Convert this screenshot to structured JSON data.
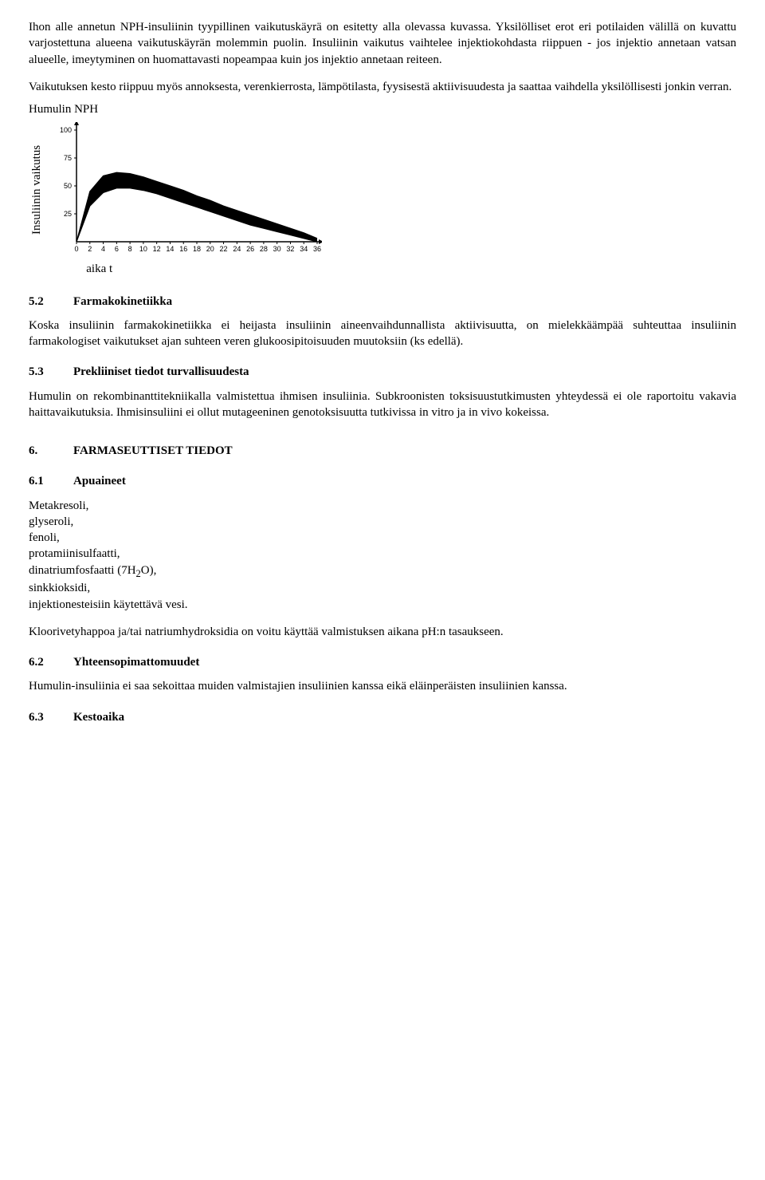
{
  "intro": {
    "p1": "Ihon alle annetun NPH-insuliinin tyypillinen vaikutuskäyrä on esitetty alla olevassa kuvassa. Yksilölliset erot eri potilaiden välillä on kuvattu varjostettuna alueena vaikutuskäyrän molemmin puolin. Insuliinin vaikutus vaihtelee injektiokohdasta riippuen - jos injektio annetaan vatsan alueelle, imeytyminen on huomattavasti nopeampaa kuin jos injektio annetaan reiteen.",
    "p2": "Vaikutuksen kesto riippuu myös annoksesta, verenkierrosta, lämpötilasta, fyysisestä aktiivisuudesta ja saattaa vaihdella yksilöllisesti jonkin verran."
  },
  "chart": {
    "title": "Humulin NPH",
    "y_axis_label": "Insuliinin vaikutus",
    "x_axis_label": "aika t",
    "y_ticks": [
      "100",
      "75",
      "50",
      "25",
      "0"
    ],
    "x_ticks": [
      "0",
      "2",
      "4",
      "6",
      "8",
      "10",
      "12",
      "14",
      "16",
      "18",
      "20",
      "22",
      "24",
      "26",
      "28",
      "30",
      "32",
      "34",
      "36"
    ],
    "line_color": "#000000",
    "fill_color": "#000000",
    "background": "#ffffff",
    "upper_values": [
      0,
      45,
      59,
      62,
      61,
      58,
      54,
      50,
      46,
      41,
      37,
      32,
      28,
      24,
      20,
      16,
      12,
      8,
      3
    ],
    "lower_values": [
      0,
      32,
      44,
      48,
      48,
      46,
      43,
      39,
      35,
      31,
      27,
      23,
      19,
      15,
      12,
      9,
      6,
      3,
      0
    ],
    "xlim": [
      0,
      36
    ],
    "ylim": [
      0,
      100
    ]
  },
  "s52": {
    "num": "5.2",
    "title": "Farmakokinetiikka",
    "body": "Koska insuliinin farmakokinetiikka ei heijasta insuliinin aineenvaihdunnallista aktiivisuutta, on mielekkäämpää suhteuttaa insuliinin farmakologiset vaikutukset ajan suhteen veren glukoosipitoisuuden muutoksiin (ks edellä)."
  },
  "s53": {
    "num": "5.3",
    "title": "Prekliiniset tiedot turvallisuudesta",
    "body": "Humulin on rekombinanttitekniikalla valmistettua ihmisen insuliinia. Subkroonisten toksisuustutkimusten yhteydessä ei ole raportoitu vakavia haittavaikutuksia. Ihmisinsuliini ei ollut mutageeninen genotoksisuutta tutkivissa in vitro ja in vivo kokeissa."
  },
  "s6": {
    "num": "6.",
    "title": "FARMASEUTTISET TIEDOT"
  },
  "s61": {
    "num": "6.1",
    "title": "Apuaineet",
    "items": [
      "Metakresoli,",
      "glyseroli,",
      "fenoli,",
      "protamiinisulfaatti,",
      "dinatriumfosfaatti (7H",
      "O),",
      "sinkkioksidi,",
      "injektionesteisiin käytettävä vesi."
    ],
    "sub": "2",
    "note": "Kloorivetyhappoa ja/tai natriumhydroksidia on voitu käyttää valmistuksen aikana pH:n tasaukseen."
  },
  "s62": {
    "num": "6.2",
    "title": "Yhteensopimattomuudet",
    "body": "Humulin-insuliinia ei saa sekoittaa muiden valmistajien insuliinien kanssa eikä eläinperäisten insuliinien kanssa."
  },
  "s63": {
    "num": "6.3",
    "title": "Kestoaika"
  }
}
